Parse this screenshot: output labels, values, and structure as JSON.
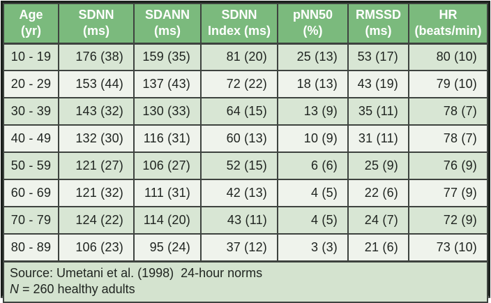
{
  "chart_data": {
    "type": "table",
    "title": "",
    "columns": [
      "Age (yr)",
      "SDNN (ms)",
      "SDANN (ms)",
      "SDNN Index (ms)",
      "pNN50 (%)",
      "RMSSD (ms)",
      "HR (beats/min)"
    ],
    "rows": [
      [
        "10 - 19",
        "176 (38)",
        "159 (35)",
        "81 (20)",
        "25 (13)",
        "53 (17)",
        "80 (10)"
      ],
      [
        "20 - 29",
        "153 (44)",
        "137 (43)",
        "72 (22)",
        "18 (13)",
        "43 (19)",
        "79 (10)"
      ],
      [
        "30 - 39",
        "143 (32)",
        "130 (33)",
        "64 (15)",
        "13 (9)",
        "35 (11)",
        "78 (7)"
      ],
      [
        "40 - 49",
        "132 (30)",
        "116 (31)",
        "60 (13)",
        "10 (9)",
        "31 (11)",
        "78 (7)"
      ],
      [
        "50 - 59",
        "121 (27)",
        "106 (27)",
        "52 (15)",
        "6 (6)",
        "25 (9)",
        "76 (9)"
      ],
      [
        "60 - 69",
        "121 (32)",
        "111 (31)",
        "42 (13)",
        "4 (5)",
        "22 (6)",
        "77 (9)"
      ],
      [
        "70 - 79",
        "124 (22)",
        "114 (20)",
        "43 (11)",
        "4 (5)",
        "24 (7)",
        "72 (9)"
      ],
      [
        "80 - 89",
        "106 (23)",
        "95 (24)",
        "37 (12)",
        "3 (3)",
        "21 (6)",
        "73 (10)"
      ]
    ],
    "source": "Source: Umetani et al. (1998) 24-hour norms",
    "sample_size": "N = 260 healthy adults"
  },
  "header": {
    "columns": [
      {
        "line1": "Age",
        "line2": "(yr)"
      },
      {
        "line1": "SDNN",
        "line2": "(ms)"
      },
      {
        "line1": "SDANN",
        "line2": "(ms)"
      },
      {
        "line1": "SDNN",
        "line2": "Index (ms)"
      },
      {
        "line1": "pNN50",
        "line2": "(%)"
      },
      {
        "line1": "RMSSD",
        "line2": "(ms)"
      },
      {
        "line1": "HR",
        "line2": "(beats/min)"
      }
    ]
  },
  "footer": {
    "source_text": "Source: Umetani et al. (1998)  24-hour norms",
    "n_symbol": "N",
    "n_text": "= 260 healthy adults"
  },
  "colors": {
    "header_bg": "#7bba7d",
    "header_text": "#ffffff",
    "row_dark_bg": "#d8e6d4",
    "row_light_bg": "#eff3ec",
    "footer_bg": "#d4e3cf",
    "grid_border": "#3e433f",
    "outer_border": "#1a1f1b",
    "bottom_border": "#5c625e",
    "cell_text": "#1e231f"
  }
}
